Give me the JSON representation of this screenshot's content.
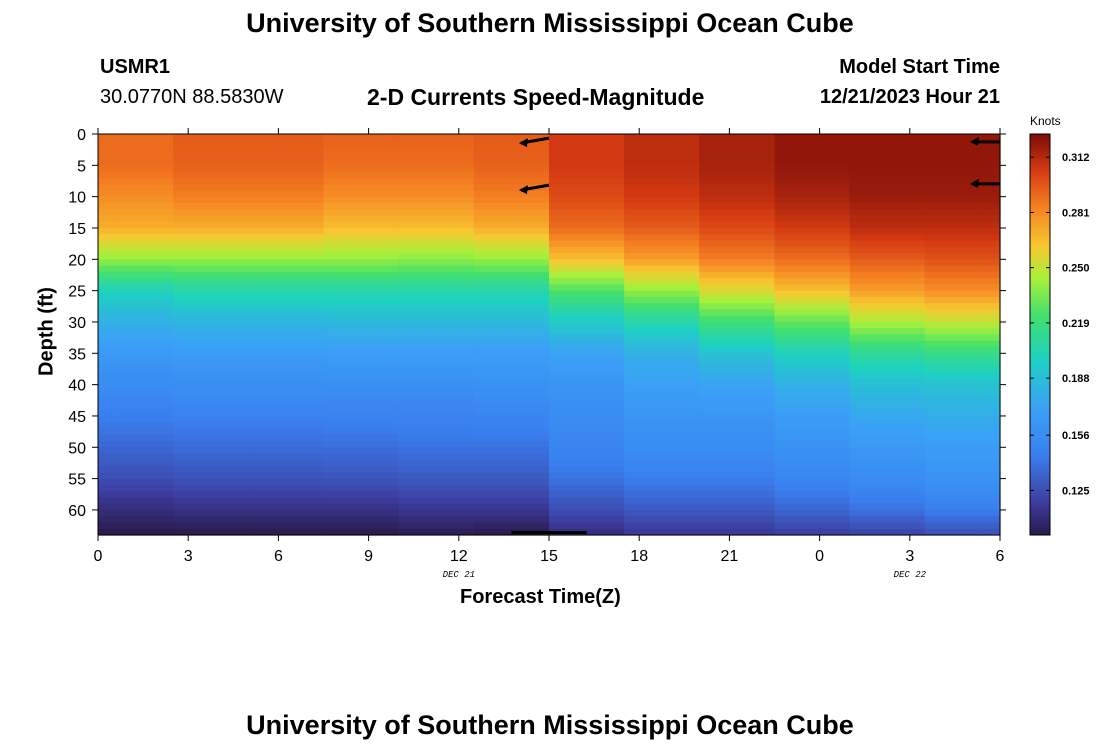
{
  "header": {
    "title": "University of Southern Mississippi Ocean Cube",
    "station_id": "USMR1",
    "coordinates": "30.0770N  88.5830W",
    "subtitle": "2-D Currents Speed-Magnitude",
    "model_start_label": "Model Start Time",
    "model_start_value": "12/21/2023 Hour 21"
  },
  "footer": {
    "title": "University of Southern Mississippi Ocean Cube"
  },
  "chart_data": {
    "type": "heatmap",
    "title": "2-D Currents Speed-Magnitude",
    "xlabel": "Forecast Time(Z)",
    "ylabel": "Depth (ft)",
    "x_hours_from_start": [
      0,
      3,
      6,
      9,
      12,
      15,
      18,
      21,
      24,
      27,
      30
    ],
    "x_tick_labels": [
      "0",
      "3",
      "6",
      "9",
      "12",
      "15",
      "18",
      "21",
      "0",
      "3",
      "6"
    ],
    "xlim_hours": [
      0,
      30
    ],
    "date_labels": [
      {
        "text": "DEC 21",
        "hour": 12
      },
      {
        "text": "DEC 22",
        "hour": 27
      }
    ],
    "y_ticks_ft": [
      0,
      5,
      10,
      15,
      20,
      25,
      30,
      35,
      40,
      45,
      50,
      55,
      60
    ],
    "ylim_ft": [
      0,
      64
    ],
    "time_columns_hours": [
      0,
      1.25,
      3.75,
      6.25,
      8.75,
      11.25,
      13.75,
      16.25,
      18.75,
      21.25,
      23.75,
      26.25,
      28.75,
      30
    ],
    "profile_depths_ft": [
      0,
      5,
      10,
      15,
      20,
      25,
      30,
      35,
      40,
      45,
      50,
      55,
      60,
      64
    ],
    "speed_knots": [
      [
        0.29,
        0.29,
        0.28,
        0.27,
        0.24,
        0.2,
        0.18,
        0.165,
        0.155,
        0.145,
        0.135,
        0.125,
        0.11,
        0.1
      ],
      [
        0.29,
        0.29,
        0.28,
        0.27,
        0.24,
        0.2,
        0.18,
        0.165,
        0.155,
        0.145,
        0.135,
        0.125,
        0.11,
        0.1
      ],
      [
        0.295,
        0.293,
        0.285,
        0.27,
        0.24,
        0.205,
        0.183,
        0.167,
        0.157,
        0.147,
        0.137,
        0.127,
        0.112,
        0.1
      ],
      [
        0.295,
        0.293,
        0.285,
        0.27,
        0.24,
        0.205,
        0.183,
        0.167,
        0.157,
        0.147,
        0.137,
        0.127,
        0.112,
        0.1
      ],
      [
        0.293,
        0.29,
        0.28,
        0.265,
        0.24,
        0.205,
        0.185,
        0.168,
        0.158,
        0.148,
        0.138,
        0.128,
        0.112,
        0.1
      ],
      [
        0.293,
        0.29,
        0.28,
        0.265,
        0.238,
        0.205,
        0.185,
        0.168,
        0.158,
        0.148,
        0.14,
        0.13,
        0.115,
        0.102
      ],
      [
        0.295,
        0.293,
        0.285,
        0.27,
        0.24,
        0.205,
        0.185,
        0.168,
        0.16,
        0.15,
        0.14,
        0.13,
        0.115,
        0.1
      ],
      [
        0.305,
        0.305,
        0.3,
        0.29,
        0.265,
        0.225,
        0.195,
        0.172,
        0.162,
        0.155,
        0.15,
        0.14,
        0.125,
        0.11
      ],
      [
        0.31,
        0.31,
        0.305,
        0.295,
        0.275,
        0.24,
        0.205,
        0.18,
        0.17,
        0.163,
        0.155,
        0.145,
        0.13,
        0.115
      ],
      [
        0.315,
        0.315,
        0.31,
        0.3,
        0.285,
        0.255,
        0.22,
        0.19,
        0.172,
        0.163,
        0.155,
        0.145,
        0.13,
        0.115
      ],
      [
        0.32,
        0.32,
        0.315,
        0.305,
        0.29,
        0.265,
        0.23,
        0.2,
        0.18,
        0.168,
        0.16,
        0.15,
        0.135,
        0.118
      ],
      [
        0.32,
        0.32,
        0.318,
        0.31,
        0.295,
        0.275,
        0.245,
        0.21,
        0.188,
        0.175,
        0.165,
        0.155,
        0.14,
        0.12
      ],
      [
        0.32,
        0.32,
        0.318,
        0.31,
        0.298,
        0.28,
        0.25,
        0.215,
        0.19,
        0.178,
        0.168,
        0.16,
        0.145,
        0.125
      ],
      [
        0.32,
        0.32,
        0.318,
        0.31,
        0.298,
        0.28,
        0.25,
        0.215,
        0.19,
        0.178,
        0.168,
        0.16,
        0.145,
        0.125
      ]
    ],
    "colorbar": {
      "unit": "Knots",
      "min": 0.1,
      "max": 0.325,
      "ticks": [
        0.125,
        0.156,
        0.188,
        0.219,
        0.25,
        0.281,
        0.312
      ],
      "tick_labels": [
        "0.125",
        "0.156",
        "0.188",
        "0.219",
        "0.250",
        "0.281",
        "0.312"
      ]
    },
    "vectors": [
      {
        "hour": 14,
        "depth_ft": 0.5,
        "direction": "west-southwest"
      },
      {
        "hour": 14,
        "depth_ft": 8,
        "direction": "west-southwest"
      },
      {
        "hour": 29,
        "depth_ft": 0.3,
        "direction": "west"
      },
      {
        "hour": 29,
        "depth_ft": 7,
        "direction": "west"
      }
    ],
    "bottom_marker_hours": [
      13.75,
      16.25
    ]
  }
}
